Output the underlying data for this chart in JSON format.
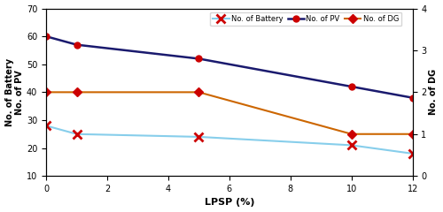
{
  "x": [
    0,
    1,
    5,
    10,
    12
  ],
  "battery": [
    28,
    25,
    24,
    21,
    18
  ],
  "pv": [
    60,
    57,
    52,
    42,
    38
  ],
  "dg_left": [
    40,
    40,
    40,
    25,
    25
  ],
  "xlabel": "LPSP (%)",
  "ylabel_left": "No. of Battery\nNo. of PV",
  "ylabel_right": "No. of DG",
  "xlim": [
    0,
    12
  ],
  "ylim_left": [
    10,
    70
  ],
  "ylim_right": [
    0,
    4
  ],
  "xticks": [
    0,
    2,
    4,
    6,
    8,
    10,
    12
  ],
  "yticks_left": [
    10,
    20,
    30,
    40,
    50,
    60,
    70
  ],
  "yticks_right": [
    0,
    1,
    2,
    3,
    4
  ],
  "battery_color": "#87CEEB",
  "pv_color": "#1a1a6e",
  "dg_color": "#cc6600",
  "marker_color": "#cc0000",
  "legend_battery": "No. of Battery",
  "legend_pv": "No. of PV",
  "legend_dg": "No. of DG"
}
